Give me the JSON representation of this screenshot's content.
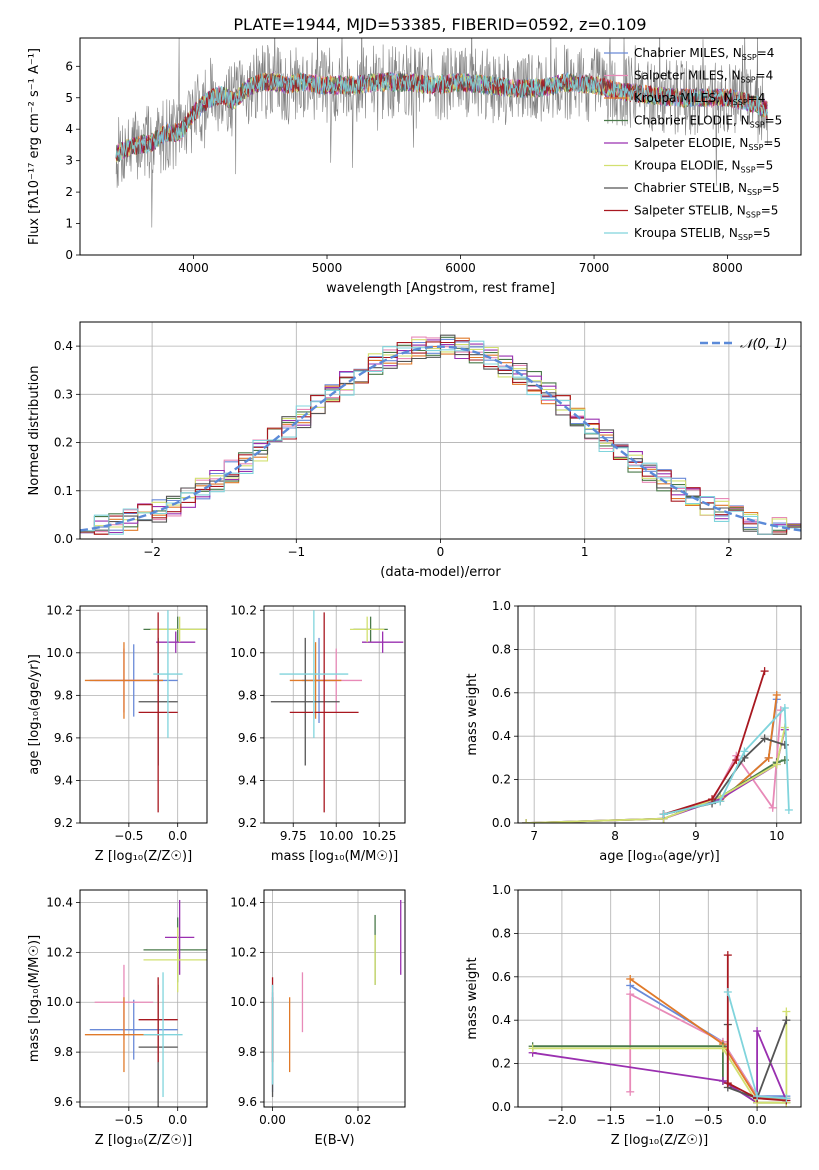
{
  "figure": {
    "title": "PLATE=1944, MJD=53385, FIBERID=0592, z=0.109"
  },
  "model_colors": {
    "Chabrier MILES": "#6a8ad8",
    "Salpeter MILES": "#e88ab8",
    "Kroupa MILES": "#e07a2a",
    "Chabrier ELODIE": "#4a7a4a",
    "Salpeter ELODIE": "#9a30b0",
    "Kroupa ELODIE": "#d2e070",
    "Chabrier STELIB": "#555555",
    "Salpeter STELIB": "#a81820",
    "Kroupa STELIB": "#80d4dc"
  },
  "chart_data": [
    {
      "id": "spectrum",
      "type": "line",
      "xlabel": "wavelength [Angstrom, rest frame]",
      "ylabel": "Flux [fλ10⁻¹⁷ erg cm⁻² s⁻¹ A⁻¹]",
      "xlim": [
        3150,
        8550
      ],
      "ylim": [
        0,
        6.9
      ],
      "xticks": [
        "4000",
        "5000",
        "6000",
        "7000",
        "8000"
      ],
      "yticks": [
        "0",
        "1",
        "2",
        "3",
        "4",
        "5",
        "6"
      ],
      "legend_position": "right",
      "legend": [
        {
          "label": "Chabrier MILES, N",
          "sub": "SSP",
          "suffix": "=4"
        },
        {
          "label": "Salpeter MILES, N",
          "sub": "SSP",
          "suffix": "=4"
        },
        {
          "label": "Kroupa MILES, N",
          "sub": "SSP",
          "suffix": "=4"
        },
        {
          "label": "Chabrier ELODIE, N",
          "sub": "SSP",
          "suffix": "=5"
        },
        {
          "label": "Salpeter ELODIE, N",
          "sub": "SSP",
          "suffix": "=5"
        },
        {
          "label": "Kroupa ELODIE, N",
          "sub": "SSP",
          "suffix": "=5"
        },
        {
          "label": "Chabrier STELIB, N",
          "sub": "SSP",
          "suffix": "=5"
        },
        {
          "label": "Salpeter STELIB, N",
          "sub": "SSP",
          "suffix": "=5"
        },
        {
          "label": "Kroupa STELIB, N",
          "sub": "SSP",
          "suffix": "=5"
        }
      ],
      "continuum": [
        [
          3420,
          3.2
        ],
        [
          3500,
          3.4
        ],
        [
          3600,
          3.5
        ],
        [
          3700,
          3.6
        ],
        [
          3800,
          3.9
        ],
        [
          3900,
          3.9
        ],
        [
          4000,
          4.5
        ],
        [
          4100,
          4.9
        ],
        [
          4200,
          5.1
        ],
        [
          4300,
          4.9
        ],
        [
          4400,
          5.3
        ],
        [
          4500,
          5.5
        ],
        [
          4600,
          5.5
        ],
        [
          4700,
          5.4
        ],
        [
          4800,
          5.5
        ],
        [
          5000,
          5.4
        ],
        [
          5200,
          5.4
        ],
        [
          5400,
          5.5
        ],
        [
          5600,
          5.5
        ],
        [
          5800,
          5.4
        ],
        [
          6000,
          5.5
        ],
        [
          6200,
          5.4
        ],
        [
          6400,
          5.3
        ],
        [
          6600,
          5.3
        ],
        [
          6800,
          5.5
        ],
        [
          7000,
          5.4
        ],
        [
          7200,
          5.2
        ],
        [
          7400,
          5.1
        ],
        [
          7600,
          5.0
        ],
        [
          7800,
          5.0
        ],
        [
          8000,
          5.0
        ],
        [
          8200,
          4.8
        ],
        [
          8300,
          4.6
        ]
      ]
    },
    {
      "id": "residuals",
      "type": "bar",
      "xlabel": "(data-model)/error",
      "ylabel": "Normed distribution",
      "xlim": [
        -2.5,
        2.5
      ],
      "ylim": [
        0,
        0.45
      ],
      "xticks": [
        "−2",
        "−1",
        "0",
        "1",
        "2"
      ],
      "yticks": [
        "0.0",
        "0.1",
        "0.2",
        "0.3",
        "0.4"
      ],
      "grid": true,
      "legend_position": "top-right",
      "legend_label": "𝒩(0, 1)",
      "normal_curve": {
        "mean": 0,
        "sigma": 1
      },
      "bins": [
        -2.5,
        2.5
      ],
      "bin_width": 0.1
    },
    {
      "id": "age-vs-Z",
      "type": "scatter",
      "xlabel": "Z [log₁₀(Z/Z☉)]",
      "ylabel": "age  [log₁₀(age/yr)]",
      "xlim": [
        -1.0,
        0.3
      ],
      "ylim": [
        9.2,
        10.22
      ],
      "xticks": [
        "−0.5",
        "0.0"
      ],
      "yticks": [
        "9.2",
        "9.4",
        "9.6",
        "9.8",
        "10.0",
        "10.2"
      ],
      "grid": true,
      "points": [
        {
          "model": "Chabrier MILES",
          "x": -0.45,
          "y": 9.87,
          "xerr": 0.45,
          "yerr": 0.17
        },
        {
          "model": "Salpeter MILES",
          "x": -0.55,
          "y": 9.87,
          "xerr": 0.3,
          "yerr": 0.15
        },
        {
          "model": "Kroupa MILES",
          "x": -0.55,
          "y": 9.87,
          "xerr": 0.4,
          "yerr": 0.18
        },
        {
          "model": "Chabrier ELODIE",
          "x": 0.0,
          "y": 10.11,
          "xerr": 0.35,
          "yerr": 0.06
        },
        {
          "model": "Salpeter ELODIE",
          "x": -0.02,
          "y": 10.05,
          "xerr": 0.2,
          "yerr": 0.05
        },
        {
          "model": "Kroupa ELODIE",
          "x": 0.02,
          "y": 10.11,
          "xerr": 0.3,
          "yerr": 0.06
        },
        {
          "model": "Chabrier STELIB",
          "x": -0.2,
          "y": 9.77,
          "xerr": 0.2,
          "yerr": 0.3
        },
        {
          "model": "Salpeter STELIB",
          "x": -0.2,
          "y": 9.72,
          "xerr": 0.2,
          "yerr": 0.47
        },
        {
          "model": "Kroupa STELIB",
          "x": -0.1,
          "y": 9.9,
          "xerr": 0.15,
          "yerr": 0.3
        }
      ]
    },
    {
      "id": "age-vs-mass",
      "type": "scatter",
      "xlabel": "mass [log₁₀(M/M☉)]",
      "ylabel": "",
      "xlim": [
        9.58,
        10.4
      ],
      "ylim": [
        9.2,
        10.22
      ],
      "xticks": [
        "9.75",
        "10.00",
        "10.25"
      ],
      "yticks": [
        "9.2",
        "9.4",
        "9.6",
        "9.8",
        "10.0",
        "10.2"
      ],
      "grid": true,
      "points": [
        {
          "model": "Chabrier MILES",
          "x": 9.9,
          "y": 9.87,
          "xerr": 0.1,
          "yerr": 0.2
        },
        {
          "model": "Salpeter MILES",
          "x": 10.0,
          "y": 9.87,
          "xerr": 0.15,
          "yerr": 0.15
        },
        {
          "model": "Kroupa MILES",
          "x": 9.88,
          "y": 9.87,
          "xerr": 0.15,
          "yerr": 0.18
        },
        {
          "model": "Chabrier ELODIE",
          "x": 10.2,
          "y": 10.11,
          "xerr": 0.1,
          "yerr": 0.06
        },
        {
          "model": "Salpeter ELODIE",
          "x": 10.27,
          "y": 10.05,
          "xerr": 0.12,
          "yerr": 0.05
        },
        {
          "model": "Kroupa ELODIE",
          "x": 10.18,
          "y": 10.11,
          "xerr": 0.1,
          "yerr": 0.06
        },
        {
          "model": "Chabrier STELIB",
          "x": 9.82,
          "y": 9.77,
          "xerr": 0.2,
          "yerr": 0.3
        },
        {
          "model": "Salpeter STELIB",
          "x": 9.93,
          "y": 9.72,
          "xerr": 0.2,
          "yerr": 0.47
        },
        {
          "model": "Kroupa STELIB",
          "x": 9.87,
          "y": 9.9,
          "xerr": 0.2,
          "yerr": 0.3
        }
      ]
    },
    {
      "id": "mass-weight-vs-age",
      "type": "line",
      "xlabel": "age  [log₁₀(age/yr)]",
      "ylabel": "mass weight",
      "xlim": [
        6.8,
        10.3
      ],
      "ylim": [
        0,
        1.0
      ],
      "xticks": [
        "7",
        "8",
        "9",
        "10"
      ],
      "yticks": [
        "0.0",
        "0.2",
        "0.4",
        "0.6",
        "0.8",
        "1.0"
      ],
      "grid": true,
      "series": [
        {
          "model": "Chabrier MILES",
          "x": [
            8.6,
            9.3,
            9.9,
            10.0
          ],
          "y": [
            0.04,
            0.1,
            0.3,
            0.57
          ]
        },
        {
          "model": "Salpeter MILES",
          "x": [
            8.6,
            9.2,
            9.5,
            9.95,
            10.05
          ],
          "y": [
            0.04,
            0.1,
            0.31,
            0.07,
            0.52
          ]
        },
        {
          "model": "Kroupa MILES",
          "x": [
            8.6,
            9.3,
            9.9,
            10.0
          ],
          "y": [
            0.04,
            0.1,
            0.3,
            0.59
          ]
        },
        {
          "model": "Chabrier ELODIE",
          "x": [
            6.9,
            8.6,
            9.3,
            10.0,
            10.1
          ],
          "y": [
            0.0,
            0.02,
            0.12,
            0.28,
            0.29
          ]
        },
        {
          "model": "Salpeter ELODIE",
          "x": [
            6.9,
            8.6,
            9.3,
            10.0,
            10.1
          ],
          "y": [
            0.0,
            0.02,
            0.11,
            0.27,
            0.43
          ]
        },
        {
          "model": "Kroupa ELODIE",
          "x": [
            6.9,
            8.6,
            9.3,
            10.0,
            10.1
          ],
          "y": [
            0.0,
            0.02,
            0.12,
            0.27,
            0.44
          ]
        },
        {
          "model": "Chabrier STELIB",
          "x": [
            8.6,
            9.2,
            9.6,
            9.85,
            10.1
          ],
          "y": [
            0.04,
            0.09,
            0.3,
            0.39,
            0.36
          ]
        },
        {
          "model": "Salpeter STELIB",
          "x": [
            8.6,
            9.2,
            9.5,
            9.85
          ],
          "y": [
            0.04,
            0.11,
            0.29,
            0.7
          ]
        },
        {
          "model": "Kroupa STELIB",
          "x": [
            8.6,
            9.3,
            9.6,
            10.1,
            10.15
          ],
          "y": [
            0.04,
            0.1,
            0.33,
            0.53,
            0.06
          ]
        }
      ]
    },
    {
      "id": "mass-vs-Z",
      "type": "scatter",
      "xlabel": "Z [log₁₀(Z/Z☉)]",
      "ylabel": "mass [log₁₀(M/M☉)]",
      "xlim": [
        -1.0,
        0.3
      ],
      "ylim": [
        9.58,
        10.45
      ],
      "xticks": [
        "−0.5",
        "0.0"
      ],
      "yticks": [
        "9.6",
        "9.8",
        "10.0",
        "10.2",
        "10.4"
      ],
      "grid": true,
      "points": [
        {
          "model": "Chabrier MILES",
          "x": -0.45,
          "y": 9.89,
          "xerr": 0.45,
          "yerr": 0.12
        },
        {
          "model": "Salpeter MILES",
          "x": -0.55,
          "y": 10.0,
          "xerr": 0.3,
          "yerr": 0.15
        },
        {
          "model": "Kroupa MILES",
          "x": -0.55,
          "y": 9.87,
          "xerr": 0.4,
          "yerr": 0.15
        },
        {
          "model": "Chabrier ELODIE",
          "x": 0.0,
          "y": 10.21,
          "xerr": 0.35,
          "yerr": 0.13
        },
        {
          "model": "Salpeter ELODIE",
          "x": 0.02,
          "y": 10.26,
          "xerr": 0.15,
          "yerr": 0.15
        },
        {
          "model": "Kroupa ELODIE",
          "x": 0.0,
          "y": 10.17,
          "xerr": 0.35,
          "yerr": 0.13
        },
        {
          "model": "Chabrier STELIB",
          "x": -0.2,
          "y": 9.82,
          "xerr": 0.2,
          "yerr": 0.25
        },
        {
          "model": "Salpeter STELIB",
          "x": -0.2,
          "y": 9.93,
          "xerr": 0.2,
          "yerr": 0.17
        },
        {
          "model": "Kroupa STELIB",
          "x": -0.15,
          "y": 9.87,
          "xerr": 0.2,
          "yerr": 0.25
        }
      ]
    },
    {
      "id": "mass-vs-EBV",
      "type": "scatter",
      "xlabel": "E(B-V)",
      "ylabel": "",
      "xlim": [
        -0.002,
        0.031
      ],
      "ylim": [
        9.58,
        10.45
      ],
      "xticks": [
        "0.00",
        "0.02"
      ],
      "yticks": [
        "9.6",
        "9.8",
        "10.0",
        "10.2",
        "10.4"
      ],
      "grid": true,
      "points": [
        {
          "model": "Chabrier MILES",
          "x": 0.0,
          "y": 9.84,
          "yerr": 0.2
        },
        {
          "model": "Salpeter MILES",
          "x": 0.007,
          "y": 10.0,
          "yerr": 0.12
        },
        {
          "model": "Kroupa MILES",
          "x": 0.004,
          "y": 9.87,
          "yerr": 0.15
        },
        {
          "model": "Chabrier ELODIE",
          "x": 0.024,
          "y": 10.21,
          "yerr": 0.14
        },
        {
          "model": "Salpeter ELODIE",
          "x": 0.03,
          "y": 10.26,
          "yerr": 0.15
        },
        {
          "model": "Kroupa ELODIE",
          "x": 0.024,
          "y": 10.17,
          "yerr": 0.1
        },
        {
          "model": "Chabrier STELIB",
          "x": 0.0,
          "y": 9.82,
          "yerr": 0.2
        },
        {
          "model": "Salpeter STELIB",
          "x": 0.0,
          "y": 9.93,
          "yerr": 0.17
        },
        {
          "model": "Kroupa STELIB",
          "x": 0.0,
          "y": 9.87,
          "yerr": 0.2
        }
      ]
    },
    {
      "id": "mass-weight-vs-Z",
      "type": "line",
      "xlabel": "Z [log₁₀(Z/Z☉)]",
      "ylabel": "mass weight",
      "xlim": [
        -2.45,
        0.45
      ],
      "ylim": [
        0,
        1.0
      ],
      "xticks": [
        "−2.0",
        "−1.5",
        "−1.0",
        "−0.5",
        "0.0"
      ],
      "yticks": [
        "0.0",
        "0.2",
        "0.4",
        "0.6",
        "0.8",
        "1.0"
      ],
      "grid": true,
      "series": [
        {
          "model": "Chabrier MILES",
          "x": [
            -1.3,
            -0.35,
            0.0,
            0.3
          ],
          "y": [
            0.56,
            0.3,
            0.05,
            0.05
          ]
        },
        {
          "model": "Salpeter MILES",
          "x": [
            -1.3,
            -1.3,
            -0.35,
            0.0,
            0.3
          ],
          "y": [
            0.07,
            0.52,
            0.3,
            0.05,
            0.04
          ]
        },
        {
          "model": "Kroupa MILES",
          "x": [
            -1.3,
            -0.35,
            0.0,
            0.3
          ],
          "y": [
            0.59,
            0.29,
            0.04,
            0.04
          ]
        },
        {
          "model": "Chabrier ELODIE",
          "x": [
            -2.3,
            -0.35,
            -0.35,
            0.0,
            0.3
          ],
          "y": [
            0.28,
            0.28,
            0.12,
            0.02,
            0.02
          ]
        },
        {
          "model": "Salpeter ELODIE",
          "x": [
            -2.3,
            -0.35,
            0.0,
            0.0,
            0.3
          ],
          "y": [
            0.25,
            0.12,
            0.02,
            0.35,
            0.03
          ]
        },
        {
          "model": "Kroupa ELODIE",
          "x": [
            -2.3,
            -0.35,
            0.0,
            0.3,
            0.3
          ],
          "y": [
            0.27,
            0.27,
            0.02,
            0.02,
            0.44
          ]
        },
        {
          "model": "Chabrier STELIB",
          "x": [
            -0.3,
            -0.3,
            0.0,
            0.3
          ],
          "y": [
            0.38,
            0.09,
            0.04,
            0.4
          ]
        },
        {
          "model": "Salpeter STELIB",
          "x": [
            -0.3,
            -0.3,
            0.0,
            0.3
          ],
          "y": [
            0.7,
            0.11,
            0.04,
            0.03
          ]
        },
        {
          "model": "Kroupa STELIB",
          "x": [
            -0.3,
            0.0,
            0.3
          ],
          "y": [
            0.53,
            0.05,
            0.04
          ]
        }
      ]
    }
  ]
}
